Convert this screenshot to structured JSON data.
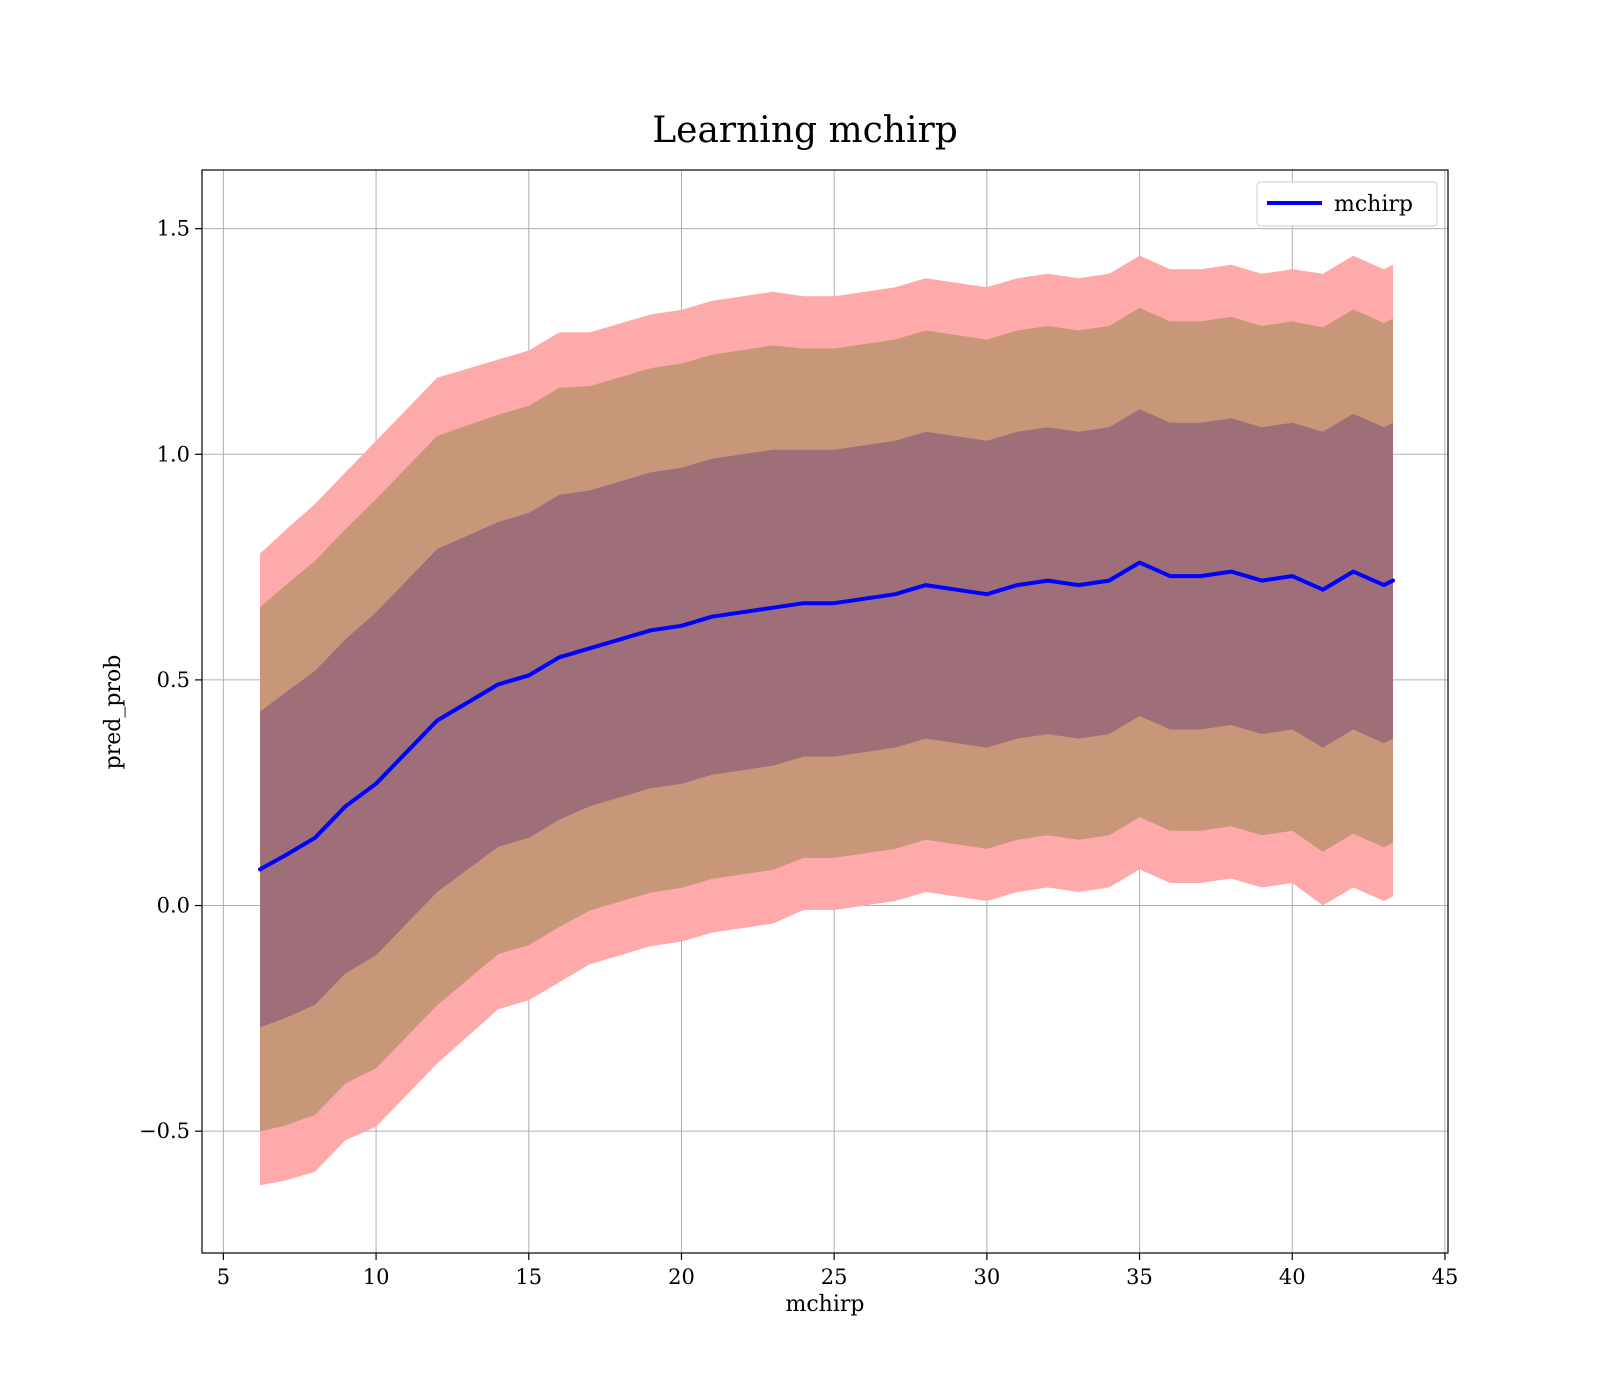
{
  "chart_data": {
    "type": "line",
    "title": "Learning mchirp",
    "xlabel": "mchirp",
    "ylabel": "pred_prob",
    "xlim": [
      4.3,
      45.1
    ],
    "ylim": [
      -0.77,
      1.63
    ],
    "xticks": [
      5,
      10,
      15,
      20,
      25,
      30,
      35,
      40,
      45
    ],
    "yticks": [
      -0.5,
      0.0,
      0.5,
      1.0,
      1.5
    ],
    "ytick_labels": [
      "−0.5",
      "0.0",
      "0.5",
      "1.0",
      "1.5"
    ],
    "grid": true,
    "legend": {
      "position": "top-right",
      "entries": [
        "mchirp"
      ]
    },
    "colors": {
      "line": "#0000ff",
      "band_outer": "#ffaaaa",
      "band_middle": "#c8977a",
      "band_inner": "#9e6f78"
    },
    "series": [
      {
        "name": "mchirp",
        "x": [
          6.2,
          7,
          8,
          9,
          10,
          11,
          12,
          13,
          14,
          15,
          16,
          17,
          18,
          19,
          20,
          21,
          22,
          23,
          24,
          25,
          26,
          27,
          28,
          29,
          30,
          31,
          32,
          33,
          34,
          35,
          36,
          37,
          38,
          39,
          40,
          41,
          42,
          43,
          43.3
        ],
        "y": [
          0.08,
          0.11,
          0.15,
          0.22,
          0.27,
          0.34,
          0.41,
          0.45,
          0.49,
          0.51,
          0.55,
          0.57,
          0.59,
          0.61,
          0.62,
          0.64,
          0.65,
          0.66,
          0.67,
          0.67,
          0.68,
          0.69,
          0.71,
          0.7,
          0.69,
          0.71,
          0.72,
          0.71,
          0.72,
          0.76,
          0.73,
          0.73,
          0.74,
          0.72,
          0.73,
          0.7,
          0.74,
          0.71,
          0.72
        ],
        "sigma": [
          0.35,
          0.36,
          0.37,
          0.37,
          0.38,
          0.38,
          0.38,
          0.37,
          0.36,
          0.36,
          0.36,
          0.35,
          0.35,
          0.35,
          0.35,
          0.35,
          0.35,
          0.35,
          0.34,
          0.34,
          0.34,
          0.34,
          0.34,
          0.34,
          0.34,
          0.34,
          0.34,
          0.34,
          0.34,
          0.34,
          0.34,
          0.34,
          0.34,
          0.34,
          0.34,
          0.35,
          0.35,
          0.35,
          0.35
        ]
      }
    ]
  }
}
